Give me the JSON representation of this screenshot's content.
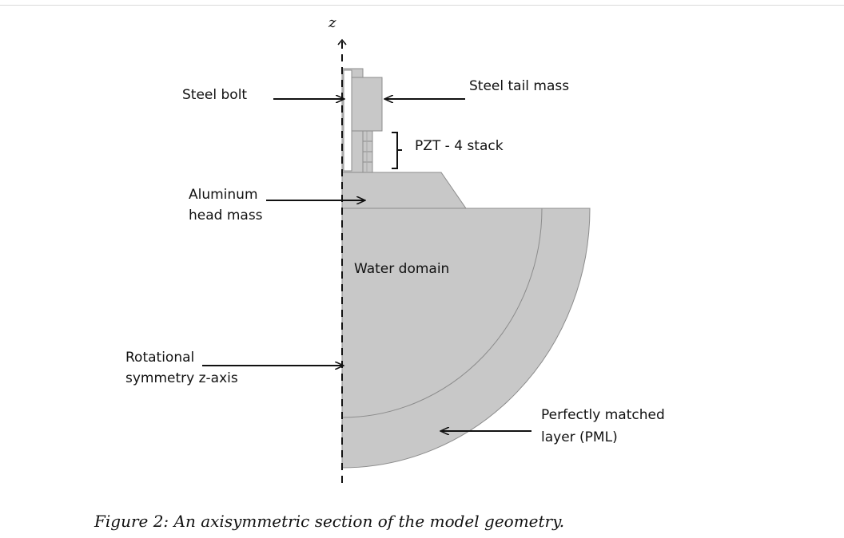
{
  "axis": {
    "label": "z"
  },
  "labels": {
    "steel_bolt": "Steel bolt",
    "steel_tail_mass": "Steel tail mass",
    "pzt_stack": "PZT - 4 stack",
    "aluminum_line1": "Aluminum",
    "aluminum_line2": "head mass",
    "water_domain": "Water domain",
    "rotational_line1": "Rotational",
    "rotational_line2": "symmetry z-axis",
    "pml_line1": "Perfectly matched",
    "pml_line2": "layer (PML)"
  },
  "caption": "Figure 2: An axisymmetric section of the model geometry.",
  "colors": {
    "fill": "#c8c8c8",
    "stroke": "#8c8c8c",
    "ink": "#111111"
  }
}
